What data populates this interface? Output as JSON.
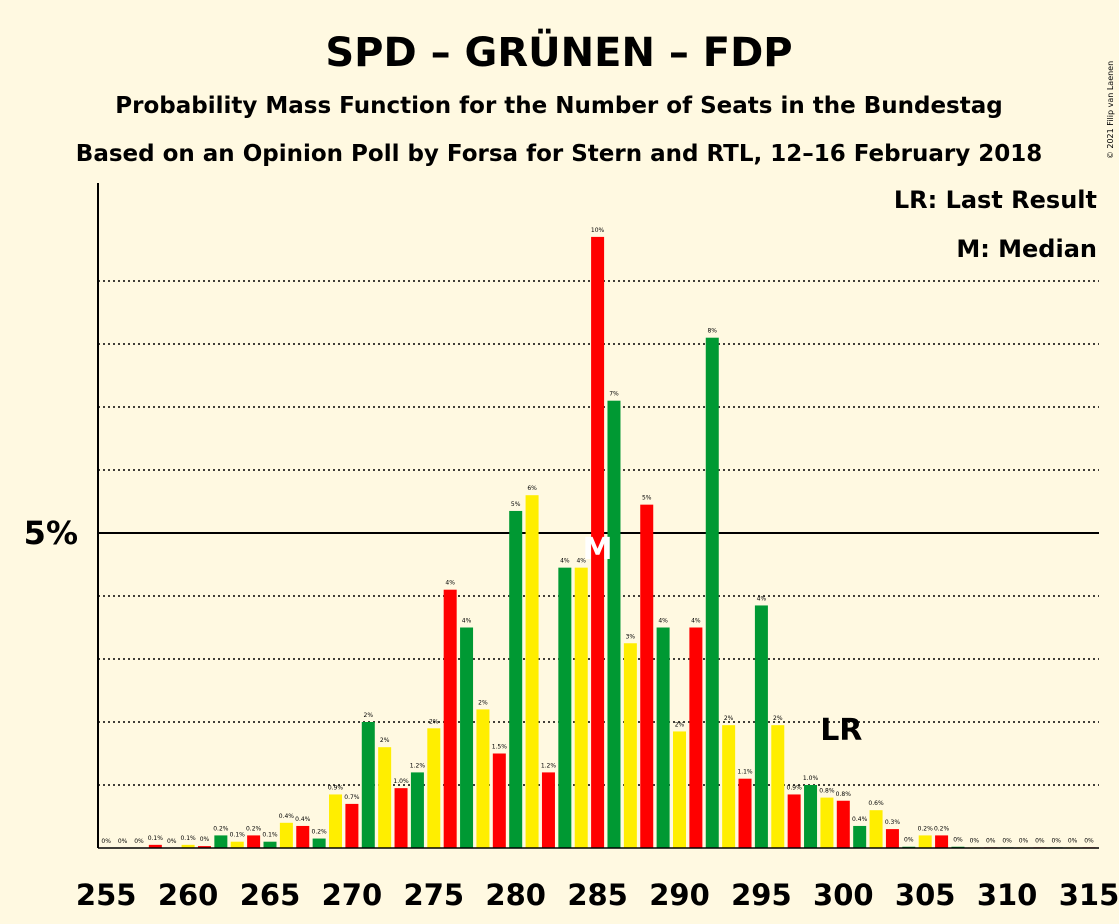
{
  "title": "SPD – GRÜNEN – FDP",
  "subtitle": "Probability Mass Function for the Number of Seats in the Bundestag",
  "subtitle2": "Based on an Opinion Poll by Forsa for Stern and RTL, 12–16 February 2018",
  "copyright": "© 2021 Filip van Laenen",
  "legend": {
    "lr": "LR: Last Result",
    "median": "M: Median"
  },
  "markers": {
    "median_label": "M",
    "median_seat": 285,
    "lr_label": "LR",
    "lr_seat": 300
  },
  "colors": {
    "red": "#FF0000",
    "green": "#009933",
    "yellow": "#FFEE00",
    "background": "#FFF9E1"
  },
  "chart_data": {
    "type": "bar",
    "x": [
      255,
      256,
      257,
      258,
      259,
      260,
      261,
      262,
      263,
      264,
      265,
      266,
      267,
      268,
      269,
      270,
      271,
      272,
      273,
      274,
      275,
      276,
      277,
      278,
      279,
      280,
      281,
      282,
      283,
      284,
      285,
      286,
      287,
      288,
      289,
      290,
      291,
      292,
      293,
      294,
      295,
      296,
      297,
      298,
      299,
      300,
      301,
      302,
      303,
      304,
      305,
      306,
      307,
      308,
      309,
      310,
      311,
      312,
      313,
      314,
      315
    ],
    "values": [
      0,
      0,
      0,
      0.05,
      0,
      0.05,
      0.03,
      0.2,
      0.1,
      0.2,
      0.1,
      0.4,
      0.35,
      0.15,
      0.85,
      0.7,
      2.0,
      1.6,
      0.95,
      1.2,
      1.9,
      4.1,
      3.5,
      2.2,
      1.5,
      5.35,
      5.6,
      1.2,
      4.45,
      4.45,
      9.7,
      7.1,
      3.25,
      5.45,
      3.5,
      1.85,
      3.5,
      8.1,
      1.95,
      1.1,
      3.85,
      1.95,
      0.85,
      1.0,
      0.8,
      0.75,
      0.35,
      0.6,
      0.3,
      0.02,
      0.2,
      0.2,
      0.02,
      0.01,
      0.01,
      0.01,
      0.01,
      0.01,
      0.01,
      0.01,
      0.01
    ],
    "labels": [
      "0%",
      "0%",
      "0%",
      "0.1%",
      "0%",
      "0.1%",
      "0%",
      "0.2%",
      "0.1%",
      "0.2%",
      "0.1%",
      "0.4%",
      "0.4%",
      "0.2%",
      "0.9%",
      "0.7%",
      "2%",
      "2%",
      "1.0%",
      "1.2%",
      "2%",
      "4%",
      "4%",
      "2%",
      "1.5%",
      "5%",
      "6%",
      "1.2%",
      "4%",
      "4%",
      "10%",
      "7%",
      "3%",
      "5%",
      "4%",
      "2%",
      "4%",
      "8%",
      "2%",
      "1.1%",
      "4%",
      "2%",
      "0.9%",
      "1.0%",
      "0.8%",
      "0.8%",
      "0.4%",
      "0.6%",
      "0.3%",
      "0%",
      "0.2%",
      "0.2%",
      "0%",
      "0%",
      "0%",
      "0%",
      "0%",
      "0%",
      "0%",
      "0%",
      "0%"
    ],
    "color_cycle": [
      "#FF0000",
      "#009933",
      "#FFEE00"
    ],
    "xticks": [
      255,
      260,
      265,
      270,
      275,
      280,
      285,
      290,
      295,
      300,
      305,
      310,
      315
    ],
    "ytick_label": "5%",
    "ytick_value": 5,
    "ylim": [
      0,
      10.5
    ],
    "gridlines": [
      1,
      2,
      3,
      4,
      6,
      7,
      8,
      9
    ],
    "xlabel": "",
    "ylabel": ""
  }
}
